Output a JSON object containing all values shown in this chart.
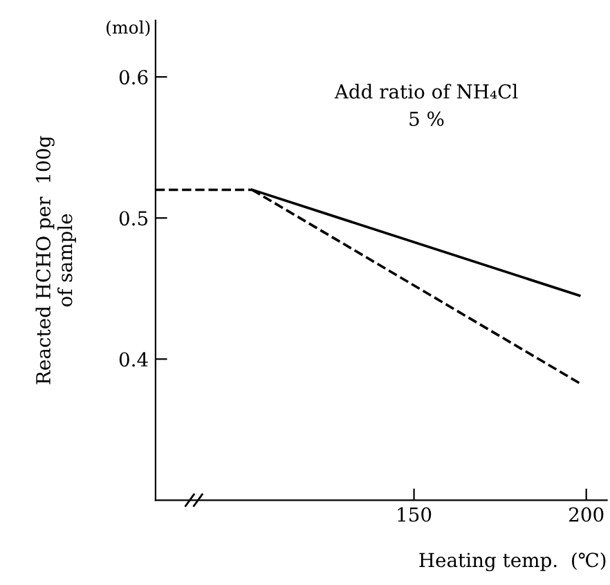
{
  "chart_data": {
    "type": "line",
    "xlabel": "Heating temp.  (℃)",
    "ylabel": "Reacted HCHO per  100g\nof sample",
    "annotations": [
      "(mol)",
      "Add ratio of NH₄Cl\n5 %"
    ],
    "series": [
      {
        "x": [
          75,
          103
        ],
        "values": [
          0.52,
          0.52
        ],
        "color": "#000000",
        "line_style": "dashed"
      },
      {
        "x": [
          103,
          198
        ],
        "values": [
          0.52,
          0.445
        ],
        "color": "#000000",
        "line_style": "solid"
      },
      {
        "x": [
          103,
          198
        ],
        "values": [
          0.52,
          0.383
        ],
        "color": "#000000",
        "line_style": "dashed"
      }
    ],
    "xlim": [
      75,
      206
    ],
    "xticks": [
      150,
      200
    ],
    "ylim": [
      0.3,
      0.64
    ],
    "yticks": [
      0.4,
      0.5,
      0.6
    ],
    "grid": false,
    "legend": false,
    "marker": "none"
  }
}
